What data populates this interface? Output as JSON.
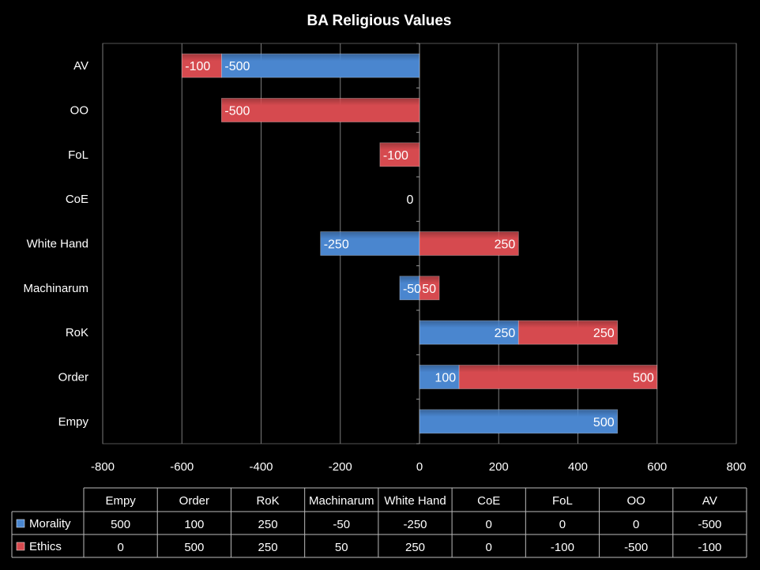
{
  "chart_data": {
    "type": "bar",
    "orientation": "horizontal",
    "stacked": true,
    "title": "BA Religious Values",
    "categories": [
      "Empy",
      "Order",
      "RoK",
      "Machinarum",
      "White Hand",
      "CoE",
      "FoL",
      "OO",
      "AV"
    ],
    "series": [
      {
        "name": "Morality",
        "color": "#4a86cf",
        "values": [
          500,
          100,
          250,
          -50,
          -250,
          0,
          0,
          0,
          -500
        ]
      },
      {
        "name": "Ethics",
        "color": "#d64a4f",
        "values": [
          0,
          500,
          250,
          50,
          250,
          0,
          -100,
          -500,
          -100
        ]
      }
    ],
    "data_labels": [
      {
        "category": "AV",
        "series": "Ethics",
        "text": "-100"
      },
      {
        "category": "AV",
        "series": "Morality",
        "text": "-500"
      },
      {
        "category": "OO",
        "series": "Ethics",
        "text": "-500"
      },
      {
        "category": "FoL",
        "series": "Ethics",
        "text": "-100"
      },
      {
        "category": "CoE",
        "series": "Morality",
        "text": "0"
      },
      {
        "category": "White Hand",
        "series": "Morality",
        "text": "-250"
      },
      {
        "category": "White Hand",
        "series": "Ethics",
        "text": "250"
      },
      {
        "category": "Machinarum",
        "series": "Morality",
        "text": "-50"
      },
      {
        "category": "Machinarum",
        "series": "Ethics",
        "text": "50"
      },
      {
        "category": "RoK",
        "series": "Morality",
        "text": "250"
      },
      {
        "category": "RoK",
        "series": "Ethics",
        "text": "250"
      },
      {
        "category": "Order",
        "series": "Morality",
        "text": "100"
      },
      {
        "category": "Order",
        "series": "Ethics",
        "text": "500"
      },
      {
        "category": "Empy",
        "series": "Morality",
        "text": "500"
      }
    ],
    "xlim": [
      -800,
      800
    ],
    "xticks": [
      -800,
      -600,
      -400,
      -200,
      0,
      200,
      400,
      600,
      800
    ],
    "xlabel": "",
    "ylabel": "",
    "grid": "vertical",
    "legend": "data-table",
    "data_table": {
      "headers": [
        "Empy",
        "Order",
        "RoK",
        "Machinarum",
        "White Hand",
        "CoE",
        "FoL",
        "OO",
        "AV"
      ],
      "rows": [
        {
          "series": "Morality",
          "cells": [
            "500",
            "100",
            "250",
            "-50",
            "-250",
            "0",
            "0",
            "0",
            "-500"
          ]
        },
        {
          "series": "Ethics",
          "cells": [
            "0",
            "500",
            "250",
            "50",
            "250",
            "0",
            "-100",
            "-500",
            "-100"
          ]
        }
      ]
    }
  }
}
